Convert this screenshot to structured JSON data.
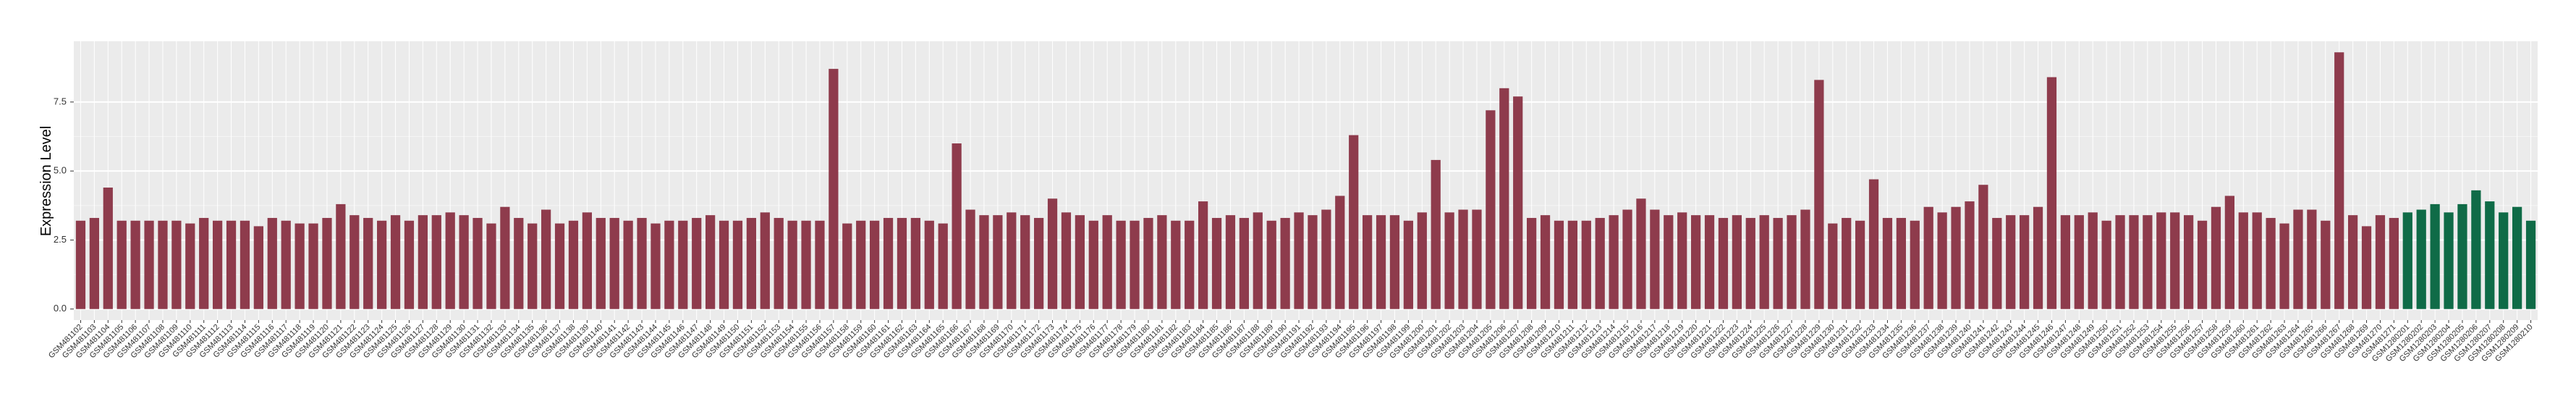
{
  "chart_data": {
    "type": "bar",
    "y_label": "Expression Level",
    "categories": [
      "GSM481102",
      "GSM481103",
      "GSM481104",
      "GSM481105",
      "GSM481106",
      "GSM481107",
      "GSM481108",
      "GSM481109",
      "GSM481110",
      "GSM481111",
      "GSM481112",
      "GSM481113",
      "GSM481114",
      "GSM481115",
      "GSM481116",
      "GSM481117",
      "GSM481118",
      "GSM481119",
      "GSM481120",
      "GSM481121",
      "GSM481122",
      "GSM481123",
      "GSM481124",
      "GSM481125",
      "GSM481126",
      "GSM481127",
      "GSM481128",
      "GSM481129",
      "GSM481130",
      "GSM481131",
      "GSM481132",
      "GSM481133",
      "GSM481134",
      "GSM481135",
      "GSM481136",
      "GSM481137",
      "GSM481138",
      "GSM481139",
      "GSM481140",
      "GSM481141",
      "GSM481142",
      "GSM481143",
      "GSM481144",
      "GSM481145",
      "GSM481146",
      "GSM481147",
      "GSM481148",
      "GSM481149",
      "GSM481150",
      "GSM481151",
      "GSM481152",
      "GSM481153",
      "GSM481154",
      "GSM481155",
      "GSM481156",
      "GSM481157",
      "GSM481158",
      "GSM481159",
      "GSM481160",
      "GSM481161",
      "GSM481162",
      "GSM481163",
      "GSM481164",
      "GSM481165",
      "GSM481166",
      "GSM481167",
      "GSM481168",
      "GSM481169",
      "GSM481170",
      "GSM481171",
      "GSM481172",
      "GSM481173",
      "GSM481174",
      "GSM481175",
      "GSM481176",
      "GSM481177",
      "GSM481178",
      "GSM481179",
      "GSM481180",
      "GSM481181",
      "GSM481182",
      "GSM481183",
      "GSM481184",
      "GSM481185",
      "GSM481186",
      "GSM481187",
      "GSM481188",
      "GSM481189",
      "GSM481190",
      "GSM481191",
      "GSM481192",
      "GSM481193",
      "GSM481194",
      "GSM481195",
      "GSM481196",
      "GSM481197",
      "GSM481198",
      "GSM481199",
      "GSM481200",
      "GSM481201",
      "GSM481202",
      "GSM481203",
      "GSM481204",
      "GSM481205",
      "GSM481206",
      "GSM481207",
      "GSM481208",
      "GSM481209",
      "GSM481210",
      "GSM481211",
      "GSM481212",
      "GSM481213",
      "GSM481214",
      "GSM481215",
      "GSM481216",
      "GSM481217",
      "GSM481218",
      "GSM481219",
      "GSM481220",
      "GSM481221",
      "GSM481222",
      "GSM481223",
      "GSM481224",
      "GSM481225",
      "GSM481226",
      "GSM481227",
      "GSM481228",
      "GSM481229",
      "GSM481230",
      "GSM481231",
      "GSM481232",
      "GSM481233",
      "GSM481234",
      "GSM481235",
      "GSM481236",
      "GSM481237",
      "GSM481238",
      "GSM481239",
      "GSM481240",
      "GSM481241",
      "GSM481242",
      "GSM481243",
      "GSM481244",
      "GSM481245",
      "GSM481246",
      "GSM481247",
      "GSM481248",
      "GSM481249",
      "GSM481250",
      "GSM481251",
      "GSM481252",
      "GSM481253",
      "GSM481254",
      "GSM481255",
      "GSM481256",
      "GSM481257",
      "GSM481258",
      "GSM481259",
      "GSM481260",
      "GSM481261",
      "GSM481262",
      "GSM481263",
      "GSM481264",
      "GSM481265",
      "GSM481266",
      "GSM481267",
      "GSM481268",
      "GSM481269",
      "GSM481270",
      "GSM481271",
      "GSM1280201",
      "GSM1280202",
      "GSM1280203",
      "GSM1280204",
      "GSM1280205",
      "GSM1280206",
      "GSM1280207",
      "GSM1280208",
      "GSM1280209",
      "GSM1280210"
    ],
    "values": [
      3.2,
      3.3,
      4.4,
      3.2,
      3.2,
      3.2,
      3.2,
      3.2,
      3.1,
      3.3,
      3.2,
      3.2,
      3.2,
      3.0,
      3.3,
      3.2,
      3.1,
      3.1,
      3.3,
      3.8,
      3.4,
      3.3,
      3.2,
      3.4,
      3.2,
      3.4,
      3.4,
      3.5,
      3.4,
      3.3,
      3.1,
      3.7,
      3.3,
      3.1,
      3.6,
      3.1,
      3.2,
      3.5,
      3.3,
      3.3,
      3.2,
      3.3,
      3.1,
      3.2,
      3.2,
      3.3,
      3.4,
      3.2,
      3.2,
      3.3,
      3.5,
      3.3,
      3.2,
      3.2,
      3.2,
      8.7,
      3.1,
      3.2,
      3.2,
      3.3,
      3.3,
      3.3,
      3.2,
      3.1,
      6.0,
      3.6,
      3.4,
      3.4,
      3.5,
      3.4,
      3.3,
      4.0,
      3.5,
      3.4,
      3.2,
      3.4,
      3.2,
      3.2,
      3.3,
      3.4,
      3.2,
      3.2,
      3.9,
      3.3,
      3.4,
      3.3,
      3.5,
      3.2,
      3.3,
      3.5,
      3.4,
      3.6,
      4.1,
      6.3,
      3.4,
      3.4,
      3.4,
      3.2,
      3.5,
      5.4,
      3.5,
      3.6,
      3.6,
      7.2,
      8.0,
      7.7,
      3.3,
      3.4,
      3.2,
      3.2,
      3.2,
      3.3,
      3.4,
      3.6,
      4.0,
      3.6,
      3.4,
      3.5,
      3.4,
      3.4,
      3.3,
      3.4,
      3.3,
      3.4,
      3.3,
      3.4,
      3.6,
      8.3,
      3.1,
      3.3,
      3.2,
      4.7,
      3.3,
      3.3,
      3.2,
      3.7,
      3.5,
      3.7,
      3.9,
      4.5,
      3.3,
      3.4,
      3.4,
      3.7,
      8.4,
      3.4,
      3.4,
      3.5,
      3.2,
      3.4,
      3.4,
      3.4,
      3.5,
      3.5,
      3.4,
      3.2,
      3.7,
      4.1,
      3.5,
      3.5,
      3.3,
      3.1,
      3.6,
      3.6,
      3.2,
      9.3,
      3.4,
      3.0,
      3.4,
      3.3,
      3.5,
      3.6,
      3.8,
      3.5,
      3.8,
      4.3,
      3.9,
      3.5,
      3.7,
      3.2
    ],
    "colors": [
      "#8e3b4c",
      "#8e3b4c",
      "#8e3b4c",
      "#8e3b4c",
      "#8e3b4c",
      "#8e3b4c",
      "#8e3b4c",
      "#8e3b4c",
      "#8e3b4c",
      "#8e3b4c",
      "#8e3b4c",
      "#8e3b4c",
      "#8e3b4c",
      "#8e3b4c",
      "#8e3b4c",
      "#8e3b4c",
      "#8e3b4c",
      "#8e3b4c",
      "#8e3b4c",
      "#8e3b4c",
      "#8e3b4c",
      "#8e3b4c",
      "#8e3b4c",
      "#8e3b4c",
      "#8e3b4c",
      "#8e3b4c",
      "#8e3b4c",
      "#8e3b4c",
      "#8e3b4c",
      "#8e3b4c",
      "#8e3b4c",
      "#8e3b4c",
      "#8e3b4c",
      "#8e3b4c",
      "#8e3b4c",
      "#8e3b4c",
      "#8e3b4c",
      "#8e3b4c",
      "#8e3b4c",
      "#8e3b4c",
      "#8e3b4c",
      "#8e3b4c",
      "#8e3b4c",
      "#8e3b4c",
      "#8e3b4c",
      "#8e3b4c",
      "#8e3b4c",
      "#8e3b4c",
      "#8e3b4c",
      "#8e3b4c",
      "#8e3b4c",
      "#8e3b4c",
      "#8e3b4c",
      "#8e3b4c",
      "#8e3b4c",
      "#8e3b4c",
      "#8e3b4c",
      "#8e3b4c",
      "#8e3b4c",
      "#8e3b4c",
      "#8e3b4c",
      "#8e3b4c",
      "#8e3b4c",
      "#8e3b4c",
      "#8e3b4c",
      "#8e3b4c",
      "#8e3b4c",
      "#8e3b4c",
      "#8e3b4c",
      "#8e3b4c",
      "#8e3b4c",
      "#8e3b4c",
      "#8e3b4c",
      "#8e3b4c",
      "#8e3b4c",
      "#8e3b4c",
      "#8e3b4c",
      "#8e3b4c",
      "#8e3b4c",
      "#8e3b4c",
      "#8e3b4c",
      "#8e3b4c",
      "#8e3b4c",
      "#8e3b4c",
      "#8e3b4c",
      "#8e3b4c",
      "#8e3b4c",
      "#8e3b4c",
      "#8e3b4c",
      "#8e3b4c",
      "#8e3b4c",
      "#8e3b4c",
      "#8e3b4c",
      "#8e3b4c",
      "#8e3b4c",
      "#8e3b4c",
      "#8e3b4c",
      "#8e3b4c",
      "#8e3b4c",
      "#8e3b4c",
      "#8e3b4c",
      "#8e3b4c",
      "#8e3b4c",
      "#8e3b4c",
      "#8e3b4c",
      "#8e3b4c",
      "#8e3b4c",
      "#8e3b4c",
      "#8e3b4c",
      "#8e3b4c",
      "#8e3b4c",
      "#8e3b4c",
      "#8e3b4c",
      "#8e3b4c",
      "#8e3b4c",
      "#8e3b4c",
      "#8e3b4c",
      "#8e3b4c",
      "#8e3b4c",
      "#8e3b4c",
      "#8e3b4c",
      "#8e3b4c",
      "#8e3b4c",
      "#8e3b4c",
      "#8e3b4c",
      "#8e3b4c",
      "#8e3b4c",
      "#8e3b4c",
      "#8e3b4c",
      "#8e3b4c",
      "#8e3b4c",
      "#8e3b4c",
      "#8e3b4c",
      "#8e3b4c",
      "#8e3b4c",
      "#8e3b4c",
      "#8e3b4c",
      "#8e3b4c",
      "#8e3b4c",
      "#8e3b4c",
      "#8e3b4c",
      "#8e3b4c",
      "#8e3b4c",
      "#8e3b4c",
      "#8e3b4c",
      "#8e3b4c",
      "#8e3b4c",
      "#8e3b4c",
      "#8e3b4c",
      "#8e3b4c",
      "#8e3b4c",
      "#8e3b4c",
      "#8e3b4c",
      "#8e3b4c",
      "#8e3b4c",
      "#8e3b4c",
      "#8e3b4c",
      "#8e3b4c",
      "#8e3b4c",
      "#8e3b4c",
      "#8e3b4c",
      "#8e3b4c",
      "#8e3b4c",
      "#8e3b4c",
      "#8e3b4c",
      "#8e3b4c",
      "#8e3b4c",
      "#8e3b4c",
      "#8e3b4c",
      "#8e3b4c",
      "#0f6b47",
      "#0f6b47",
      "#0f6b47",
      "#0f6b47",
      "#0f6b47",
      "#0f6b47",
      "#0f6b47",
      "#0f6b47",
      "#0f6b47",
      "#0f6b47"
    ],
    "ylim": [
      -0.4,
      9.7
    ],
    "yticks": [
      {
        "value": 0,
        "label": "0.0"
      },
      {
        "value": 2.5,
        "label": "2.5"
      },
      {
        "value": 5,
        "label": "5.0"
      },
      {
        "value": 7.5,
        "label": "7.5"
      }
    ],
    "grid": true
  }
}
